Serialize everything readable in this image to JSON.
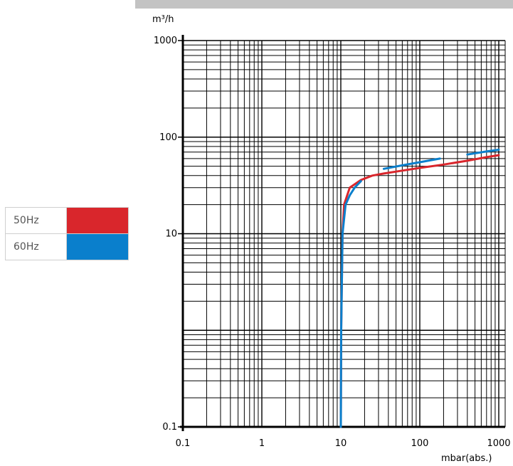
{
  "legend": [
    {
      "label": "50Hz",
      "color": "#d9262c"
    },
    {
      "label": "60Hz",
      "color": "#0a7fcc"
    }
  ],
  "chart_data": {
    "type": "line",
    "xlabel": "mbar(abs.)",
    "ylabel": "m³/h",
    "x_scale": "log",
    "y_scale": "log",
    "xlim": [
      0.1,
      1000
    ],
    "ylim": [
      0.1,
      1000
    ],
    "x_ticks": [
      "0.1",
      "1",
      "10",
      "100",
      "1000"
    ],
    "y_ticks": [
      "0.1",
      "10",
      "100",
      "1000"
    ],
    "grid": true,
    "series": [
      {
        "name": "50Hz",
        "color": "#d9262c",
        "points": [
          [
            10,
            0.1
          ],
          [
            10.1,
            1
          ],
          [
            10.5,
            10
          ],
          [
            11,
            20
          ],
          [
            13,
            30
          ],
          [
            18,
            36
          ],
          [
            25,
            40
          ],
          [
            35,
            42
          ],
          [
            60,
            45
          ],
          [
            100,
            48
          ],
          [
            200,
            52
          ],
          [
            400,
            57
          ],
          [
            700,
            62
          ],
          [
            1000,
            65
          ]
        ]
      },
      {
        "name": "60Hz",
        "color": "#0a7fcc",
        "segments": [
          [
            [
              10,
              0.1
            ],
            [
              10.1,
              1
            ],
            [
              10.5,
              10
            ],
            [
              11.5,
              20
            ],
            [
              13,
              25
            ],
            [
              15,
              30
            ],
            [
              18,
              35
            ]
          ],
          [
            [
              35,
              47
            ],
            [
              60,
              51
            ],
            [
              100,
              55
            ],
            [
              180,
              60
            ]
          ],
          [
            [
              400,
              66
            ],
            [
              700,
              71
            ],
            [
              1000,
              74
            ]
          ]
        ]
      }
    ]
  }
}
